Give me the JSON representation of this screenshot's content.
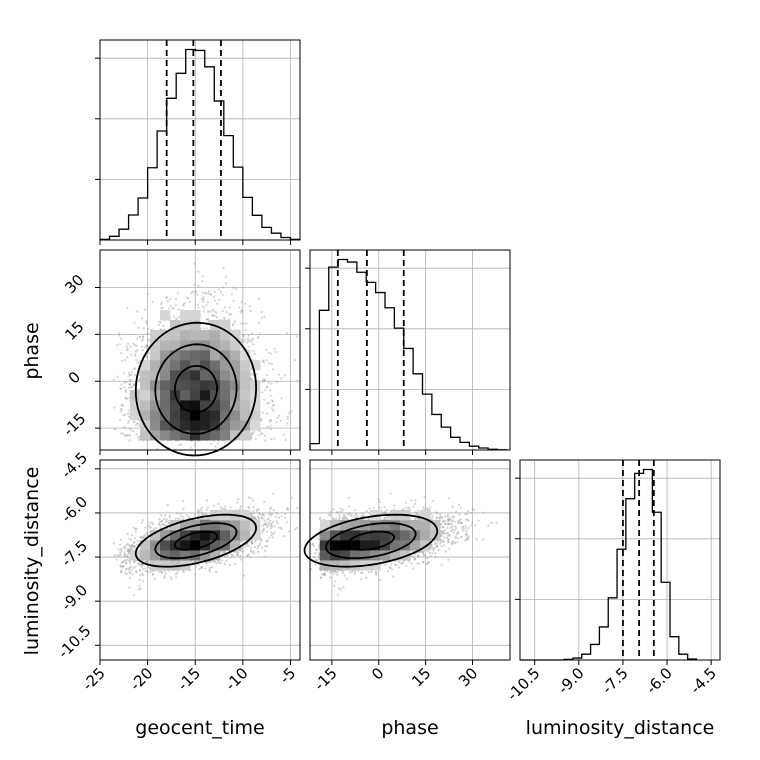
{
  "chart_data": {
    "type": "corner",
    "parameters": [
      "geocent_time",
      "phase",
      "luminosity_distance"
    ],
    "axis_labels": {
      "x": [
        "geocent_time",
        "phase",
        "luminosity_distance"
      ],
      "y": [
        "phase",
        "luminosity_distance"
      ]
    },
    "ranges": [
      [
        -25,
        -4
      ],
      [
        -22,
        42
      ],
      [
        -11,
        -4.2
      ]
    ],
    "ticks": {
      "geocent_time": [
        "-25",
        "-20",
        "-15",
        "-10",
        "-5"
      ],
      "phase": [
        "-15",
        "0",
        "15",
        "30"
      ],
      "luminosity_distance": [
        "-10.5",
        "-9.0",
        "-7.5",
        "-6.0",
        "-4.5"
      ]
    },
    "quantiles": {
      "geocent_time": [
        -18,
        -15.2,
        -12.3
      ],
      "phase": [
        -13.1,
        -3.8,
        8
      ],
      "luminosity_distance": [
        -7.5,
        -6.95,
        -6.45
      ]
    },
    "histograms": {
      "geocent_time": {
        "edges": [
          -25,
          -24,
          -23,
          -22,
          -21,
          -20,
          -19,
          -18,
          -17,
          -16,
          -15,
          -14,
          -13,
          -12,
          -11,
          -10,
          -9,
          -8,
          -7,
          -6,
          -5,
          -4
        ],
        "counts": [
          0.2,
          1.2,
          3.5,
          8.1,
          13.6,
          23.4,
          35.3,
          45.9,
          54.0,
          61.7,
          61.4,
          56.1,
          45.0,
          33.8,
          23.6,
          13.8,
          8.0,
          4.1,
          2.2,
          0.8,
          0.2
        ]
      },
      "phase": {
        "edges": [
          -22,
          -19,
          -16,
          -13,
          -10,
          -7,
          -4,
          -1,
          2,
          5,
          8,
          11,
          14,
          17,
          20,
          23,
          26,
          29,
          32,
          35,
          38,
          41
        ],
        "counts": [
          2.5,
          55.0,
          72.0,
          75.0,
          74.0,
          70.0,
          66.0,
          62.0,
          56.0,
          48.0,
          40.0,
          30.0,
          22.0,
          14.0,
          9.0,
          5.0,
          3.0,
          1.5,
          0.8,
          0.3,
          0.1
        ]
      },
      "luminosity_distance": {
        "edges": [
          -11,
          -10.7,
          -10.4,
          -10.1,
          -9.8,
          -9.5,
          -9.2,
          -8.9,
          -8.6,
          -8.3,
          -8.0,
          -7.7,
          -7.4,
          -7.1,
          -6.8,
          -6.5,
          -6.2,
          -5.9,
          -5.6,
          -5.3,
          -5.0
        ],
        "counts": [
          0,
          0,
          0,
          0,
          0,
          0.3,
          1.0,
          3.0,
          8.0,
          17.0,
          32.0,
          57.0,
          83.0,
          96.0,
          98.0,
          76.0,
          40.0,
          12.0,
          3.0,
          0.5
        ]
      }
    },
    "correlations": {
      "phase|geocent_time": 0.1,
      "luminosity_distance|geocent_time": 0.6,
      "luminosity_distance|phase": 0.55
    }
  }
}
